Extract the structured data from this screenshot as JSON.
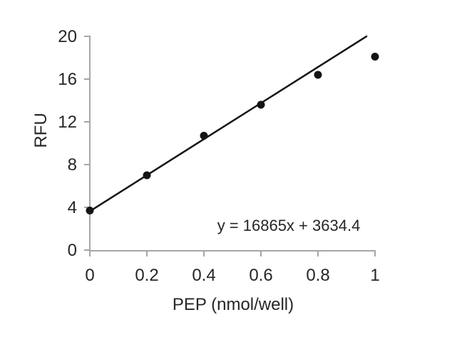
{
  "chart_data": {
    "type": "scatter",
    "title": "",
    "xlabel": "PEP (nmol/well)",
    "ylabel": "RFU",
    "x": [
      0,
      0.2,
      0.4,
      0.6,
      0.8,
      1.0
    ],
    "y": [
      3.7,
      7.0,
      10.7,
      13.6,
      16.4,
      18.1
    ],
    "xlim": [
      0,
      1
    ],
    "ylim": [
      0,
      20
    ],
    "x_ticks": [
      0,
      0.2,
      0.4,
      0.6,
      0.8,
      1
    ],
    "x_tick_labels": [
      "0",
      "0.2",
      "0.4",
      "0.6",
      "0.8",
      "1"
    ],
    "y_ticks": [
      0,
      4,
      8,
      12,
      16,
      20
    ],
    "y_tick_labels": [
      "0",
      "4",
      "8",
      "12",
      "16",
      "20"
    ],
    "grid": false,
    "legend": "none",
    "trendline": {
      "equation_label": "y = 16865x + 3634.4",
      "slope": 16.865,
      "intercept": 3.6344,
      "x_start": 0,
      "x_end": 0.97
    },
    "marker": {
      "shape": "circle",
      "radius_px": 5.5,
      "color": "#141414"
    },
    "colors": {
      "axis": "#a6a6a6",
      "text": "#262626",
      "line": "#141414",
      "background": "#ffffff"
    }
  }
}
